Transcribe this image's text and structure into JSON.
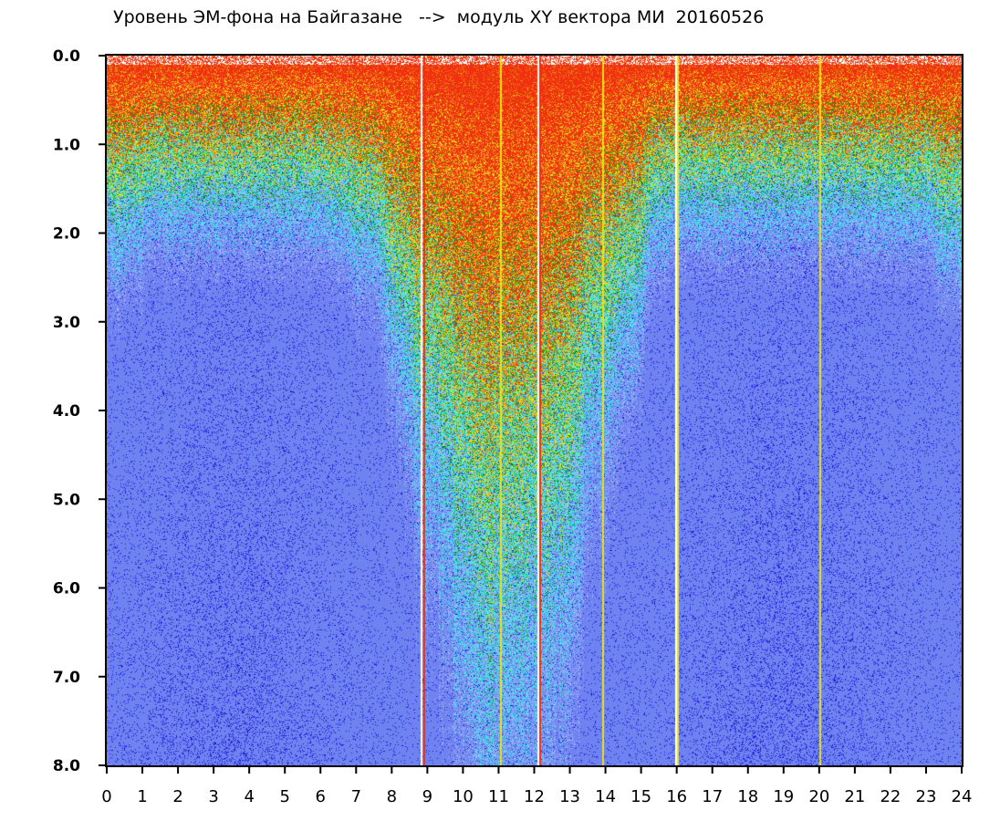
{
  "title": "Уровень ЭМ-фона на Байгазане   -->  модуль XY вектора МИ  20160526",
  "chart_data": {
    "type": "heatmap",
    "title": "Уровень ЭМ-фона на Байгазане   -->  модуль XY вектора МИ  20160526",
    "xlabel": "",
    "ylabel": "",
    "x_range": [
      0,
      24
    ],
    "y_range": [
      0.0,
      8.0
    ],
    "y_inverted": true,
    "grid": false,
    "legend": "none",
    "x_ticks": [
      "0",
      "1",
      "2",
      "3",
      "4",
      "5",
      "6",
      "7",
      "8",
      "9",
      "10",
      "11",
      "12",
      "13",
      "14",
      "15",
      "16",
      "17",
      "18",
      "19",
      "20",
      "21",
      "22",
      "23",
      "24"
    ],
    "y_ticks": [
      "0.0",
      "1.0",
      "2.0",
      "3.0",
      "4.0",
      "5.0",
      "6.0",
      "7.0",
      "8.0"
    ],
    "color_scale": [
      "#1a1ad8",
      "#6e82f0",
      "#9fb0f5",
      "#3ee6ec",
      "#1a9a1a",
      "#e8e21a",
      "#f08a10",
      "#f03010"
    ],
    "vertical_lines": [
      {
        "x": 8.82,
        "color": "#ffffff"
      },
      {
        "x": 8.9,
        "color": "#f03010"
      },
      {
        "x": 11.05,
        "color": "#e8e21a"
      },
      {
        "x": 12.08,
        "color": "#ffffff"
      },
      {
        "x": 12.15,
        "color": "#f03010"
      },
      {
        "x": 13.9,
        "color": "#e8e21a"
      },
      {
        "x": 15.95,
        "color": "#ffffff"
      },
      {
        "x": 16.0,
        "color": "#e8e21a"
      },
      {
        "x": 20.0,
        "color": "#e8e21a"
      }
    ]
  }
}
